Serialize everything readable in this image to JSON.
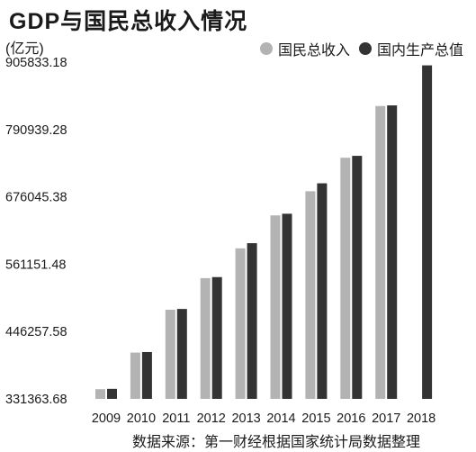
{
  "header": {
    "title": "GDP与国民总收入情况",
    "unit": "(亿元)"
  },
  "legend": [
    {
      "label": "国民总收入",
      "color": "#b3b3b3"
    },
    {
      "label": "国内生产总值",
      "color": "#333333"
    }
  ],
  "footer": {
    "source": "数据来源：第一财经根据国家统计局数据整理"
  },
  "chart_data": {
    "type": "bar",
    "categories": [
      "2009",
      "2010",
      "2011",
      "2012",
      "2013",
      "2014",
      "2015",
      "2016",
      "2017",
      "2018"
    ],
    "yticks": [
      "905833.18",
      "790939.28",
      "676045.38",
      "561151.48",
      "446257.58",
      "331363.68"
    ],
    "ylim": [
      331363.68,
      905833.18
    ],
    "legend_position": "top-right",
    "series": [
      {
        "name": "国民总收入",
        "color": "#b3b3b3",
        "values": [
          347934.9,
          410354.1,
          483392.8,
          537329.0,
          588141.2,
          644380.2,
          685571.2,
          742694.1,
          830945.7,
          null
        ]
      },
      {
        "name": "国内生产总值",
        "color": "#333333",
        "values": [
          348498.5,
          411265.2,
          484753.2,
          539116.5,
          596962.9,
          647181.7,
          699109.4,
          745980.5,
          832035.9,
          900309.5
        ]
      }
    ]
  }
}
